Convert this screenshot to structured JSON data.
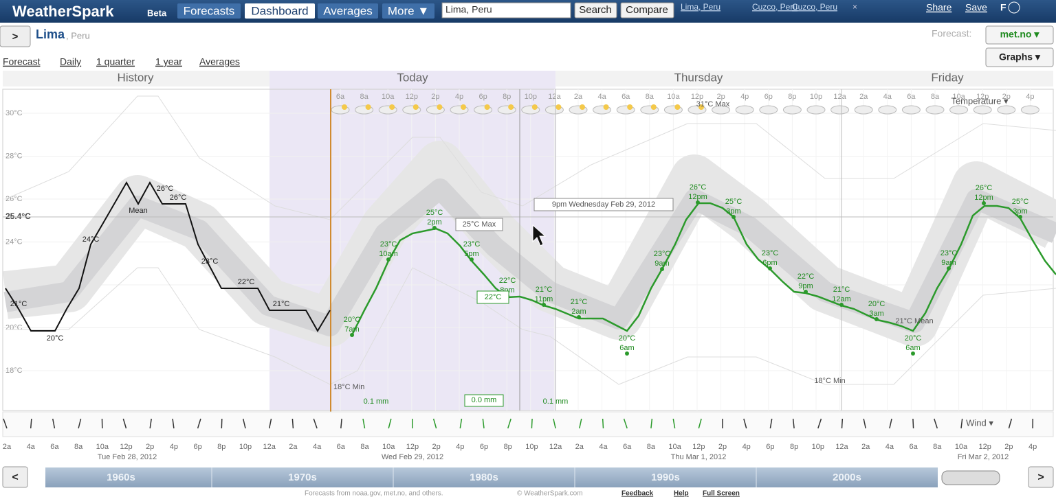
{
  "header": {
    "logo": "WeatherSpark",
    "badge": "Beta",
    "nav": [
      "Forecasts",
      "Dashboard",
      "Averages",
      "More ▼"
    ],
    "search_value": "Lima, Peru",
    "search_button": "Search",
    "compare_button": "Compare",
    "recent": [
      "Lima, Peru",
      "Cuzco, Peru",
      "Cuzco, Peru"
    ],
    "close": "×",
    "share": "Share",
    "save": "Save",
    "unit": "F"
  },
  "location": {
    "expand": ">",
    "city": "Lima",
    "country": ", Peru",
    "forecast_label": "Forecast:",
    "forecast_source": "met.no ▾",
    "graphs": "Graphs ▾"
  },
  "tabs": [
    "Forecast",
    "Daily",
    "1 quarter",
    "1 year",
    "Averages"
  ],
  "sections": [
    "History",
    "Today",
    "Thursday",
    "Friday"
  ],
  "temperature_axis": {
    "ticks": [
      "30°C",
      "28°C",
      "26°C",
      "24°C",
      "22°C",
      "20°C",
      "18°C"
    ],
    "current": "25.4°C"
  },
  "top_times": [
    "6a",
    "8a",
    "10a",
    "12p",
    "2p",
    "4p",
    "6p",
    "8p",
    "10p",
    "12a",
    "2a",
    "4a",
    "6a",
    "8a",
    "10a",
    "12p",
    "2p",
    "4p",
    "6p",
    "8p",
    "10p",
    "12a",
    "2a",
    "4a",
    "6a",
    "8a",
    "10a",
    "12p",
    "2p",
    "4p"
  ],
  "history_labels": [
    "21°C",
    "20°C",
    "24°C",
    "Mean",
    "26°C",
    "26°C",
    "23°C",
    "22°C",
    "21°C"
  ],
  "forecast_labels": [
    {
      "temp": "20°C",
      "time": "7am"
    },
    {
      "temp": "23°C",
      "time": "10am"
    },
    {
      "temp": "25°C",
      "time": "2pm"
    },
    {
      "temp": "23°C",
      "time": "5pm"
    },
    {
      "temp": "22°C",
      "time": "8pm"
    },
    {
      "temp": "21°C",
      "time": "11pm"
    },
    {
      "temp": "21°C",
      "time": "2am"
    },
    {
      "temp": "20°C",
      "time": "6am"
    },
    {
      "temp": "23°C",
      "time": "9am"
    },
    {
      "temp": "26°C",
      "time": "12pm"
    },
    {
      "temp": "25°C",
      "time": "3pm"
    },
    {
      "temp": "23°C",
      "time": "6pm"
    },
    {
      "temp": "22°C",
      "time": "9pm"
    },
    {
      "temp": "21°C",
      "time": "12am"
    },
    {
      "temp": "20°C",
      "time": "3am"
    },
    {
      "temp": "20°C",
      "time": "6am"
    },
    {
      "temp": "23°C",
      "time": "9am"
    },
    {
      "temp": "26°C",
      "time": "12pm"
    },
    {
      "temp": "25°C",
      "time": "3pm"
    }
  ],
  "annotations": {
    "max_1": "31°C Max",
    "max_box": "25°C Max",
    "current_box": "22°C",
    "tooltip": "9pm Wednesday Feb 29, 2012",
    "min_1": "18°C Min",
    "min_2": "18°C Min",
    "mean": "21°C Mean",
    "temperature_menu": "Temperature ▾",
    "precip_1": "0.1 mm",
    "precip_box": "0.0 mm",
    "precip_2": "0.1 mm",
    "wind_menu": "Wind ▾"
  },
  "bottom_times": [
    "2a",
    "4a",
    "6a",
    "8a",
    "10a",
    "12p",
    "2p",
    "4p",
    "6p",
    "8p",
    "10p",
    "12a",
    "2a",
    "4a",
    "6a",
    "8a",
    "10a",
    "12p",
    "2p",
    "4p",
    "6p",
    "8p",
    "10p",
    "12a",
    "2a",
    "4a",
    "6a",
    "8a",
    "10a",
    "12p",
    "2p",
    "4p",
    "6p",
    "8p",
    "10p",
    "12a",
    "2a",
    "4a",
    "6a",
    "8a",
    "10a",
    "12p",
    "2p",
    "4p"
  ],
  "dates": [
    "Tue Feb 28, 2012",
    "Wed Feb 29, 2012",
    "Thu Mar 1, 2012",
    "Fri Mar 2, 2012"
  ],
  "decades": [
    "1960s",
    "1970s",
    "1980s",
    "1990s",
    "2000s"
  ],
  "footer": {
    "credit": "Forecasts from noaa.gov, met.no, and others.",
    "copyright": "© WeatherSpark.com",
    "links": [
      "Feedback",
      "Help",
      "Full Screen"
    ]
  }
}
